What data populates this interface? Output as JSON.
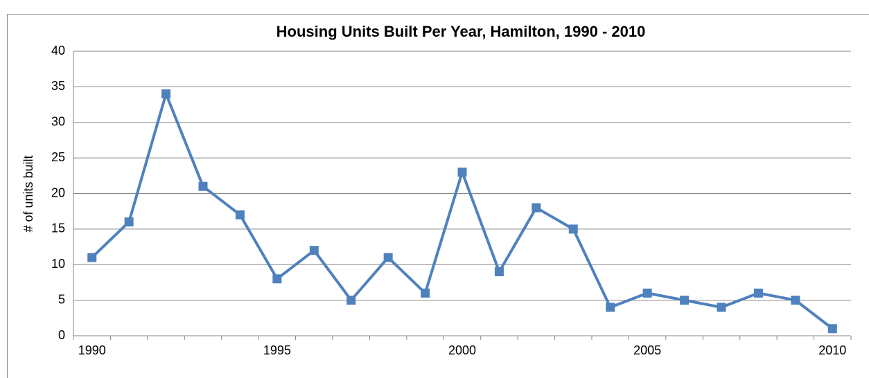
{
  "chart_data": {
    "type": "line",
    "title": "Housing Units Built Per Year, Hamilton, 1990 - 2010",
    "y_label": "# of units built",
    "categories": [
      "1990",
      null,
      null,
      null,
      null,
      "1995",
      null,
      null,
      null,
      null,
      "2000",
      null,
      null,
      null,
      null,
      "2005",
      null,
      null,
      null,
      null,
      "2010"
    ],
    "values": [
      11,
      16,
      34,
      21,
      17,
      8,
      12,
      5,
      11,
      6,
      23,
      9,
      18,
      15,
      4,
      6,
      5,
      4,
      6,
      5,
      1
    ],
    "color": "#4f81bd",
    "ylim": [
      0,
      40
    ],
    "yticks": [
      0,
      5,
      10,
      15,
      20,
      25,
      30,
      35,
      40
    ],
    "grid": true
  }
}
